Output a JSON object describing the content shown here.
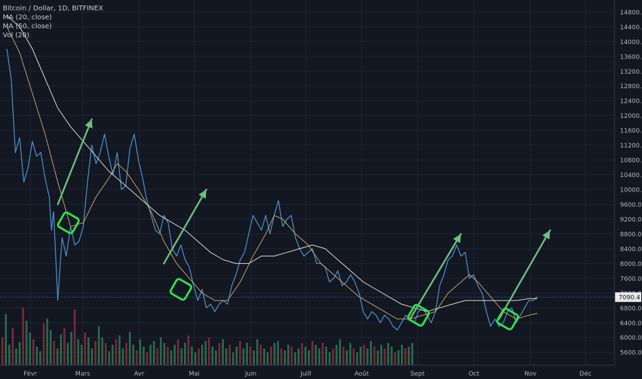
{
  "legend": {
    "title": "Bitcoin / Dollar, 1D, BITFINEX",
    "ma20": "MA (20, close)",
    "ma50": "MA (50, close)",
    "vol": "Vol (20)"
  },
  "colors": {
    "background": "#131722",
    "grid": "#1f2433",
    "price": "#4a90c8",
    "ma20": "#c9a66b",
    "ma50": "#e8e2cf",
    "arrow": "#6fbf7f",
    "box": "#33e04a",
    "vol_up": "#2f6b4f",
    "vol_down": "#7a2b3a",
    "last_price_bg": "#e8e8e8"
  },
  "chart_data": {
    "type": "line",
    "symbol": "Bitcoin / Dollar, 1D, BITFINEX",
    "y_ticks": [
      5600,
      6000,
      6400,
      6800,
      7200,
      7600,
      8000,
      8400,
      8800,
      9200,
      9600,
      10000,
      10400,
      10800,
      11200,
      11600,
      12000,
      12400,
      12800,
      13200,
      13600,
      14000,
      14400,
      14800
    ],
    "y_tick_labels": [
      "5600.0",
      "6000.0",
      "6400.0",
      "6800.0",
      "7200.0",
      "7600.0",
      "8000.0",
      "8400.0",
      "8800.0",
      "9200.0",
      "9600.0",
      "10000.0",
      "10400.0",
      "10800.0",
      "11200.0",
      "11600.0",
      "12000.0",
      "12400.0",
      "12800.0",
      "13200.0",
      "13600.0",
      "14000.0",
      "14400.0",
      "14800.0"
    ],
    "ylim": [
      5250,
      14900
    ],
    "x_ticks": [
      "Févr",
      "Mars",
      "Avr",
      "Mai",
      "Juin",
      "Juill",
      "Août",
      "Sept",
      "Oct",
      "Nov",
      "Déc"
    ],
    "x_range_days": [
      0,
      365
    ],
    "last_price": 7090.4,
    "last_price_label": "7090.4",
    "series": [
      {
        "name": "Bitcoin / Dollar",
        "points": [
          [
            0,
            13800
          ],
          [
            2,
            13000
          ],
          [
            4,
            11000
          ],
          [
            6,
            11400
          ],
          [
            8,
            10200
          ],
          [
            10,
            10600
          ],
          [
            12,
            11300
          ],
          [
            14,
            10900
          ],
          [
            16,
            11000
          ],
          [
            18,
            10300
          ],
          [
            20,
            9800
          ],
          [
            21,
            8900
          ],
          [
            22,
            9400
          ],
          [
            24,
            7000
          ],
          [
            26,
            8700
          ],
          [
            28,
            8200
          ],
          [
            30,
            9000
          ],
          [
            32,
            8500
          ],
          [
            34,
            8600
          ],
          [
            36,
            9000
          ],
          [
            38,
            10200
          ],
          [
            40,
            11200
          ],
          [
            42,
            10700
          ],
          [
            44,
            11000
          ],
          [
            46,
            11500
          ],
          [
            48,
            10900
          ],
          [
            50,
            10400
          ],
          [
            52,
            11000
          ],
          [
            54,
            10000
          ],
          [
            56,
            10100
          ],
          [
            58,
            11100
          ],
          [
            60,
            11500
          ],
          [
            62,
            10800
          ],
          [
            64,
            10300
          ],
          [
            66,
            9700
          ],
          [
            68,
            9300
          ],
          [
            70,
            8900
          ],
          [
            72,
            8800
          ],
          [
            74,
            9300
          ],
          [
            76,
            9100
          ],
          [
            78,
            8400
          ],
          [
            80,
            8200
          ],
          [
            82,
            8500
          ],
          [
            84,
            8100
          ],
          [
            86,
            7900
          ],
          [
            88,
            7400
          ],
          [
            90,
            7000
          ],
          [
            92,
            7300
          ],
          [
            94,
            6800
          ],
          [
            96,
            6900
          ],
          [
            98,
            6700
          ],
          [
            100,
            6900
          ],
          [
            102,
            7000
          ],
          [
            104,
            6900
          ],
          [
            106,
            7400
          ],
          [
            108,
            7700
          ],
          [
            110,
            8100
          ],
          [
            112,
            8300
          ],
          [
            114,
            8800
          ],
          [
            116,
            9300
          ],
          [
            118,
            9100
          ],
          [
            120,
            8900
          ],
          [
            122,
            9300
          ],
          [
            124,
            8800
          ],
          [
            126,
            9300
          ],
          [
            128,
            9700
          ],
          [
            130,
            9000
          ],
          [
            132,
            9200
          ],
          [
            134,
            9300
          ],
          [
            136,
            8700
          ],
          [
            138,
            8400
          ],
          [
            140,
            8200
          ],
          [
            142,
            8300
          ],
          [
            144,
            8400
          ],
          [
            146,
            8000
          ],
          [
            148,
            8000
          ],
          [
            150,
            7900
          ],
          [
            152,
            7500
          ],
          [
            154,
            7600
          ],
          [
            156,
            7800
          ],
          [
            158,
            7400
          ],
          [
            160,
            7500
          ],
          [
            162,
            7700
          ],
          [
            164,
            7500
          ],
          [
            166,
            7200
          ],
          [
            168,
            6700
          ],
          [
            170,
            6500
          ],
          [
            172,
            6700
          ],
          [
            174,
            6600
          ],
          [
            176,
            6400
          ],
          [
            178,
            6600
          ],
          [
            180,
            6500
          ],
          [
            182,
            6300
          ],
          [
            184,
            6200
          ],
          [
            186,
            6400
          ],
          [
            188,
            6600
          ],
          [
            190,
            6500
          ],
          [
            192,
            6400
          ],
          [
            194,
            6700
          ],
          [
            196,
            6800
          ],
          [
            198,
            6600
          ],
          [
            200,
            6400
          ],
          [
            202,
            6700
          ],
          [
            204,
            7400
          ],
          [
            206,
            7700
          ],
          [
            208,
            8100
          ],
          [
            210,
            8200
          ],
          [
            212,
            8500
          ],
          [
            214,
            8200
          ],
          [
            216,
            8300
          ],
          [
            218,
            7600
          ],
          [
            220,
            7700
          ],
          [
            222,
            7400
          ],
          [
            224,
            7200
          ],
          [
            226,
            6700
          ],
          [
            228,
            6300
          ],
          [
            230,
            6500
          ],
          [
            232,
            6300
          ],
          [
            234,
            6400
          ],
          [
            236,
            6700
          ],
          [
            238,
            6800
          ],
          [
            240,
            6400
          ],
          [
            242,
            6600
          ],
          [
            244,
            6800
          ],
          [
            246,
            7000
          ],
          [
            248,
            7000
          ],
          [
            250,
            7100
          ]
        ]
      },
      {
        "name": "MA (20, close)",
        "points": [
          [
            0,
            14400
          ],
          [
            6,
            13700
          ],
          [
            12,
            12600
          ],
          [
            18,
            11500
          ],
          [
            24,
            10200
          ],
          [
            30,
            9000
          ],
          [
            36,
            9100
          ],
          [
            42,
            9800
          ],
          [
            48,
            10300
          ],
          [
            52,
            10700
          ],
          [
            56,
            10500
          ],
          [
            62,
            10000
          ],
          [
            68,
            9400
          ],
          [
            74,
            8600
          ],
          [
            80,
            8000
          ],
          [
            86,
            7600
          ],
          [
            92,
            7200
          ],
          [
            98,
            7000
          ],
          [
            104,
            7000
          ],
          [
            110,
            7500
          ],
          [
            116,
            8200
          ],
          [
            122,
            8800
          ],
          [
            126,
            9300
          ],
          [
            130,
            9200
          ],
          [
            136,
            8800
          ],
          [
            142,
            8500
          ],
          [
            148,
            8000
          ],
          [
            154,
            7700
          ],
          [
            160,
            7400
          ],
          [
            166,
            7100
          ],
          [
            172,
            6900
          ],
          [
            178,
            6700
          ],
          [
            184,
            6500
          ],
          [
            190,
            6500
          ],
          [
            196,
            6600
          ],
          [
            202,
            6700
          ],
          [
            208,
            7200
          ],
          [
            214,
            7500
          ],
          [
            218,
            7700
          ],
          [
            222,
            7500
          ],
          [
            228,
            7100
          ],
          [
            234,
            6700
          ],
          [
            240,
            6500
          ],
          [
            246,
            6600
          ],
          [
            250,
            6650
          ]
        ]
      },
      {
        "name": "MA (50, close)",
        "points": [
          [
            0,
            14700
          ],
          [
            6,
            14400
          ],
          [
            12,
            13800
          ],
          [
            18,
            13000
          ],
          [
            24,
            12200
          ],
          [
            30,
            11700
          ],
          [
            36,
            11300
          ],
          [
            42,
            10900
          ],
          [
            48,
            10500
          ],
          [
            54,
            10200
          ],
          [
            60,
            9900
          ],
          [
            66,
            9600
          ],
          [
            72,
            9300
          ],
          [
            78,
            9100
          ],
          [
            84,
            8900
          ],
          [
            90,
            8600
          ],
          [
            96,
            8300
          ],
          [
            102,
            8100
          ],
          [
            108,
            8000
          ],
          [
            114,
            8000
          ],
          [
            120,
            8200
          ],
          [
            126,
            8200
          ],
          [
            132,
            8300
          ],
          [
            138,
            8400
          ],
          [
            144,
            8500
          ],
          [
            150,
            8400
          ],
          [
            156,
            8100
          ],
          [
            162,
            7800
          ],
          [
            168,
            7500
          ],
          [
            174,
            7300
          ],
          [
            180,
            7100
          ],
          [
            186,
            6900
          ],
          [
            192,
            6800
          ],
          [
            198,
            6700
          ],
          [
            204,
            6800
          ],
          [
            210,
            6900
          ],
          [
            216,
            7000
          ],
          [
            222,
            7000
          ],
          [
            228,
            7000
          ],
          [
            234,
            7000
          ],
          [
            240,
            7000
          ],
          [
            246,
            7050
          ],
          [
            250,
            7050
          ]
        ]
      }
    ],
    "volume_bars": [
      30,
      55,
      22,
      40,
      18,
      25,
      62,
      48,
      35,
      28,
      20,
      15,
      45,
      50,
      38,
      26,
      18,
      33,
      40,
      24,
      36,
      60,
      28,
      22,
      35,
      30,
      18,
      26,
      42,
      30,
      24,
      15,
      22,
      28,
      32,
      18,
      24,
      36,
      22,
      16,
      28,
      20,
      14,
      22,
      26,
      18,
      30,
      24,
      20,
      16,
      22,
      28,
      18,
      24,
      32,
      20,
      14,
      18,
      22,
      26,
      30,
      20,
      16,
      24,
      28,
      18,
      22,
      14,
      20,
      26,
      18,
      24,
      20,
      16,
      28,
      22,
      18,
      14,
      20,
      24,
      26,
      18,
      16,
      22,
      20,
      14,
      18,
      24,
      20,
      16,
      26,
      22,
      18,
      24,
      20,
      14,
      18,
      22,
      28,
      20,
      16,
      24,
      18,
      14,
      20,
      22,
      18,
      26,
      20,
      16,
      22,
      18,
      24,
      20,
      14,
      16,
      22,
      18,
      20,
      24
    ],
    "annotations": {
      "up_arrows": [
        [
          [
            24,
            9600
          ],
          [
            40,
            11900
          ]
        ],
        [
          [
            74,
            8000
          ],
          [
            94,
            10000
          ]
        ],
        [
          [
            190,
            6500
          ],
          [
            214,
            8800
          ]
        ],
        [
          [
            232,
            6500
          ],
          [
            256,
            8900
          ]
        ]
      ],
      "green_boxes": [
        [
          29,
          9100
        ],
        [
          82,
          7300
        ],
        [
          194,
          6600
        ],
        [
          236,
          6500
        ]
      ]
    }
  }
}
